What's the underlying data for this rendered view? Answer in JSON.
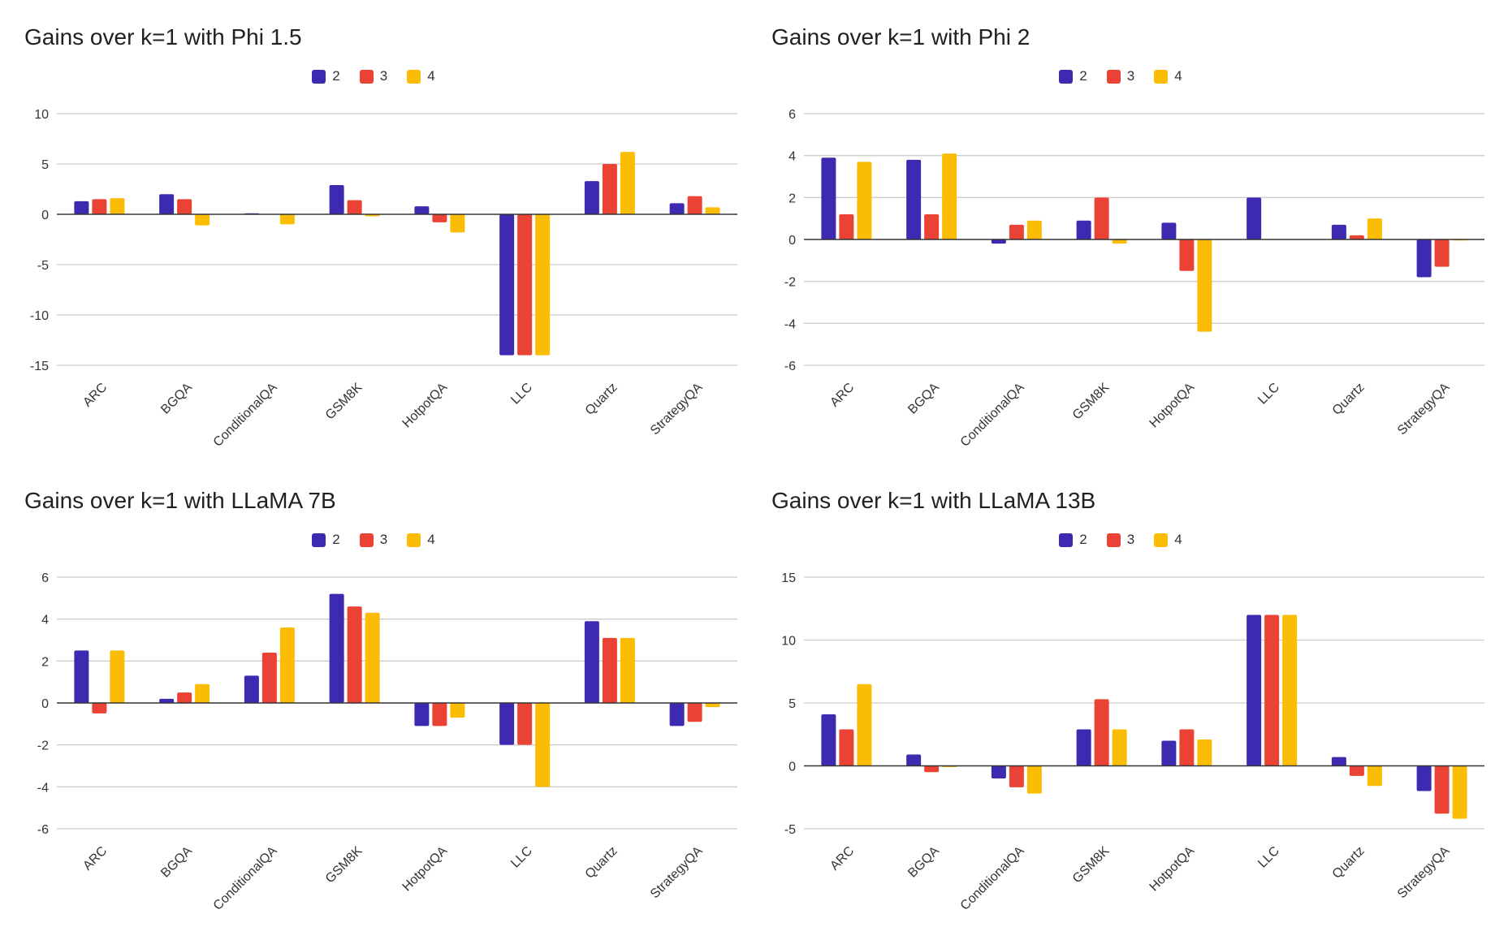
{
  "colors": {
    "2": "#3c2bb0",
    "3": "#ea4335",
    "4": "#fbbc04",
    "grid": "#cccccc",
    "axis": "#333333"
  },
  "legend_labels": [
    "2",
    "3",
    "4"
  ],
  "chart_data": [
    {
      "type": "bar",
      "title": "Gains over k=1 with Phi 1.5",
      "categories": [
        "ARC",
        "BGQA",
        "ConditionalQA",
        "GSM8K",
        "HotpotQA",
        "LLC",
        "Quartz",
        "StrategyQA"
      ],
      "series": [
        {
          "name": "2",
          "values": [
            1.3,
            2.0,
            0.1,
            2.9,
            0.8,
            -14,
            3.3,
            1.1
          ]
        },
        {
          "name": "3",
          "values": [
            1.5,
            1.5,
            0.0,
            1.4,
            -0.8,
            -14,
            5.0,
            1.8
          ]
        },
        {
          "name": "4",
          "values": [
            1.6,
            -1.1,
            -1.0,
            -0.2,
            -1.8,
            -14,
            6.2,
            0.7
          ]
        }
      ],
      "ylim": [
        -15,
        10
      ],
      "yticks": [
        -15,
        -10,
        -5,
        0,
        5,
        10
      ],
      "legend_position": "top"
    },
    {
      "type": "bar",
      "title": "Gains over k=1 with Phi 2",
      "categories": [
        "ARC",
        "BGQA",
        "ConditionalQA",
        "GSM8K",
        "HotpotQA",
        "LLC",
        "Quartz",
        "StrategyQA"
      ],
      "series": [
        {
          "name": "2",
          "values": [
            3.9,
            3.8,
            -0.2,
            0.9,
            0.8,
            2.0,
            0.7,
            -1.8
          ]
        },
        {
          "name": "3",
          "values": [
            1.2,
            1.2,
            0.7,
            2.0,
            -1.5,
            0.0,
            0.2,
            -1.3
          ]
        },
        {
          "name": "4",
          "values": [
            3.7,
            4.1,
            0.9,
            -0.2,
            -4.4,
            0.0,
            1.0,
            -0.05
          ]
        }
      ],
      "ylim": [
        -6,
        6
      ],
      "yticks": [
        -6,
        -4,
        -2,
        0,
        2,
        4,
        6
      ],
      "legend_position": "top"
    },
    {
      "type": "bar",
      "title": "Gains over k=1 with LLaMA 7B",
      "categories": [
        "ARC",
        "BGQA",
        "ConditionalQA",
        "GSM8K",
        "HotpotQA",
        "LLC",
        "Quartz",
        "StrategyQA"
      ],
      "series": [
        {
          "name": "2",
          "values": [
            2.5,
            0.2,
            1.3,
            5.2,
            -1.1,
            -2.0,
            3.9,
            -1.1
          ]
        },
        {
          "name": "3",
          "values": [
            -0.5,
            0.5,
            2.4,
            4.6,
            -1.1,
            -2.0,
            3.1,
            -0.9
          ]
        },
        {
          "name": "4",
          "values": [
            2.5,
            0.9,
            3.6,
            4.3,
            -0.7,
            -4.0,
            3.1,
            -0.2
          ]
        }
      ],
      "ylim": [
        -6,
        6
      ],
      "yticks": [
        -6,
        -4,
        -2,
        0,
        2,
        4,
        6
      ],
      "legend_position": "top"
    },
    {
      "type": "bar",
      "title": "Gains over k=1 with LLaMA 13B",
      "categories": [
        "ARC",
        "BGQA",
        "ConditionalQA",
        "GSM8K",
        "HotpotQA",
        "LLC",
        "Quartz",
        "StrategyQA"
      ],
      "series": [
        {
          "name": "2",
          "values": [
            4.1,
            0.9,
            -1.0,
            2.9,
            2.0,
            12.0,
            0.7,
            -2.0
          ]
        },
        {
          "name": "3",
          "values": [
            2.9,
            -0.5,
            -1.7,
            5.3,
            2.9,
            12.0,
            -0.8,
            -3.8
          ]
        },
        {
          "name": "4",
          "values": [
            6.5,
            -0.1,
            -2.2,
            2.9,
            2.1,
            12.0,
            -1.6,
            -4.2
          ]
        }
      ],
      "ylim": [
        -5,
        15
      ],
      "yticks": [
        -5,
        0,
        5,
        10,
        15
      ],
      "legend_position": "top"
    }
  ]
}
